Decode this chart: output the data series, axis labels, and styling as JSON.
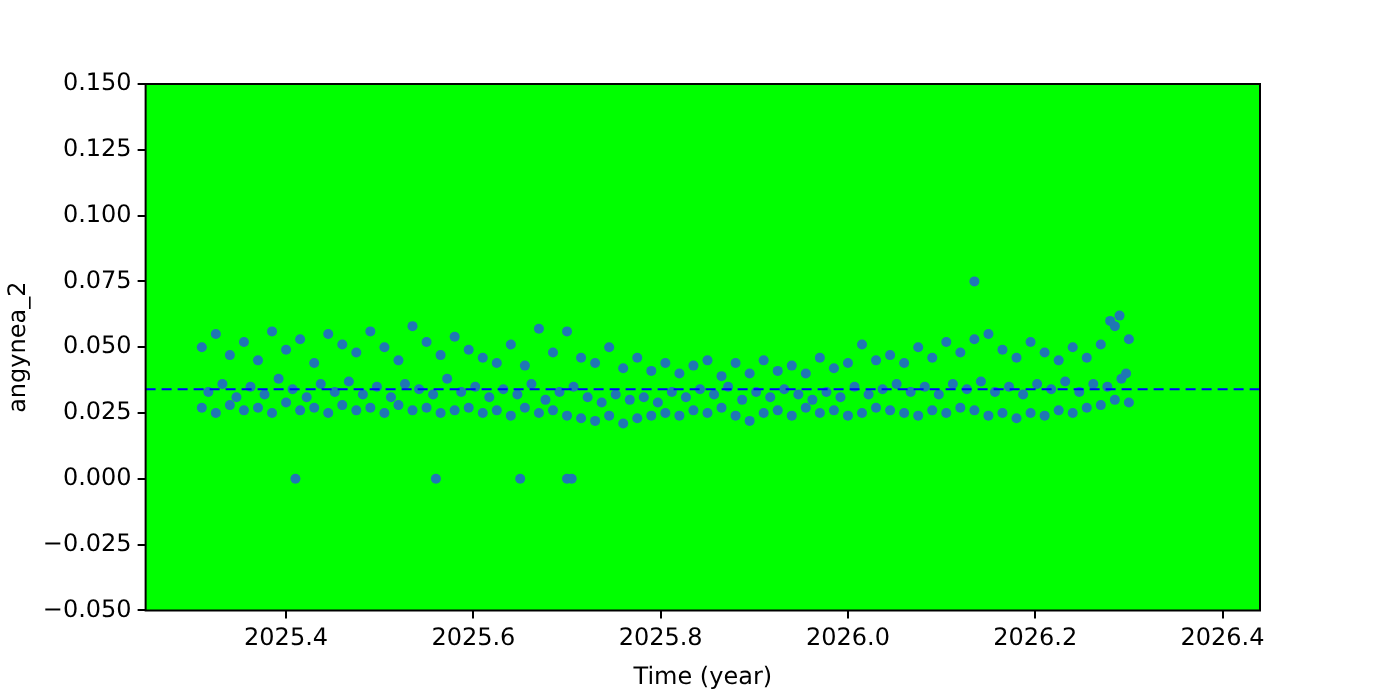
{
  "chart_data": {
    "type": "scatter",
    "xlabel": "Time (year)",
    "ylabel": "angynea_2",
    "x": [
      2025.31,
      2025.325,
      2025.34,
      2025.355,
      2025.37,
      2025.385,
      2025.4,
      2025.415,
      2025.43,
      2025.445,
      2025.46,
      2025.475,
      2025.49,
      2025.505,
      2025.52,
      2025.535,
      2025.55,
      2025.565,
      2025.58,
      2025.595,
      2025.61,
      2025.625,
      2025.64,
      2025.655,
      2025.67,
      2025.685,
      2025.7,
      2025.715,
      2025.73,
      2025.745,
      2025.76,
      2025.775,
      2025.79,
      2025.805,
      2025.82,
      2025.835,
      2025.85,
      2025.865,
      2025.88,
      2025.895,
      2025.91,
      2025.925,
      2025.94,
      2025.955,
      2025.97,
      2025.985,
      2026.0,
      2026.015,
      2026.03,
      2026.045,
      2026.06,
      2026.075,
      2026.09,
      2026.105,
      2026.12,
      2026.135,
      2026.15,
      2026.165,
      2026.18,
      2026.195,
      2026.21,
      2026.225,
      2026.24,
      2026.255,
      2026.27,
      2026.285,
      2026.3,
      2025.31,
      2025.325,
      2025.34,
      2025.355,
      2025.37,
      2025.385,
      2025.4,
      2025.415,
      2025.43,
      2025.445,
      2025.46,
      2025.475,
      2025.49,
      2025.505,
      2025.52,
      2025.535,
      2025.55,
      2025.565,
      2025.58,
      2025.595,
      2025.61,
      2025.625,
      2025.64,
      2025.655,
      2025.67,
      2025.685,
      2025.7,
      2025.715,
      2025.73,
      2025.745,
      2025.76,
      2025.775,
      2025.79,
      2025.805,
      2025.82,
      2025.835,
      2025.85,
      2025.865,
      2025.88,
      2025.895,
      2025.91,
      2025.925,
      2025.94,
      2025.955,
      2025.97,
      2025.985,
      2026.0,
      2026.015,
      2026.03,
      2026.045,
      2026.06,
      2026.075,
      2026.09,
      2026.105,
      2026.12,
      2026.135,
      2026.15,
      2026.165,
      2026.18,
      2026.195,
      2026.21,
      2026.225,
      2026.24,
      2026.255,
      2026.27,
      2026.285,
      2026.3,
      2025.317,
      2025.332,
      2025.347,
      2025.362,
      2025.377,
      2025.392,
      2025.407,
      2025.422,
      2025.437,
      2025.452,
      2025.467,
      2025.482,
      2025.497,
      2025.512,
      2025.527,
      2025.542,
      2025.557,
      2025.572,
      2025.587,
      2025.602,
      2025.617,
      2025.632,
      2025.647,
      2025.662,
      2025.677,
      2025.692,
      2025.707,
      2025.722,
      2025.737,
      2025.752,
      2025.767,
      2025.782,
      2025.797,
      2025.812,
      2025.827,
      2025.842,
      2025.857,
      2025.872,
      2025.887,
      2025.902,
      2025.917,
      2025.932,
      2025.947,
      2025.962,
      2025.977,
      2025.992,
      2026.007,
      2026.022,
      2026.037,
      2026.052,
      2026.067,
      2026.082,
      2026.097,
      2026.112,
      2026.127,
      2026.142,
      2026.157,
      2026.172,
      2026.187,
      2026.202,
      2026.217,
      2026.232,
      2026.247,
      2026.262,
      2026.277,
      2026.292,
      2026.297,
      2025.41,
      2025.56,
      2025.65,
      2025.7,
      2025.705,
      2026.135,
      2026.28,
      2026.29
    ],
    "values": [
      0.05,
      0.055,
      0.047,
      0.052,
      0.045,
      0.056,
      0.049,
      0.053,
      0.044,
      0.055,
      0.051,
      0.048,
      0.056,
      0.05,
      0.045,
      0.058,
      0.052,
      0.047,
      0.054,
      0.049,
      0.046,
      0.044,
      0.051,
      0.043,
      0.057,
      0.048,
      0.056,
      0.046,
      0.044,
      0.05,
      0.042,
      0.046,
      0.041,
      0.044,
      0.04,
      0.043,
      0.045,
      0.039,
      0.044,
      0.04,
      0.045,
      0.041,
      0.043,
      0.04,
      0.046,
      0.042,
      0.044,
      0.051,
      0.045,
      0.047,
      0.044,
      0.05,
      0.046,
      0.052,
      0.048,
      0.053,
      0.055,
      0.049,
      0.046,
      0.052,
      0.048,
      0.045,
      0.05,
      0.046,
      0.051,
      0.058,
      0.053,
      0.027,
      0.025,
      0.028,
      0.026,
      0.027,
      0.025,
      0.029,
      0.026,
      0.027,
      0.025,
      0.028,
      0.026,
      0.027,
      0.025,
      0.028,
      0.026,
      0.027,
      0.025,
      0.026,
      0.027,
      0.025,
      0.026,
      0.024,
      0.027,
      0.025,
      0.026,
      0.024,
      0.023,
      0.022,
      0.024,
      0.021,
      0.023,
      0.024,
      0.025,
      0.024,
      0.026,
      0.025,
      0.027,
      0.024,
      0.022,
      0.025,
      0.026,
      0.024,
      0.027,
      0.025,
      0.026,
      0.024,
      0.025,
      0.027,
      0.026,
      0.025,
      0.024,
      0.026,
      0.025,
      0.027,
      0.026,
      0.024,
      0.025,
      0.023,
      0.025,
      0.024,
      0.026,
      0.025,
      0.027,
      0.028,
      0.03,
      0.029,
      0.033,
      0.036,
      0.031,
      0.035,
      0.032,
      0.038,
      0.034,
      0.031,
      0.036,
      0.033,
      0.037,
      0.032,
      0.035,
      0.031,
      0.036,
      0.034,
      0.032,
      0.038,
      0.033,
      0.035,
      0.031,
      0.034,
      0.032,
      0.036,
      0.03,
      0.033,
      0.035,
      0.031,
      0.029,
      0.032,
      0.03,
      0.031,
      0.029,
      0.033,
      0.031,
      0.034,
      0.032,
      0.035,
      0.03,
      0.033,
      0.031,
      0.034,
      0.032,
      0.03,
      0.033,
      0.031,
      0.035,
      0.032,
      0.034,
      0.036,
      0.033,
      0.035,
      0.032,
      0.036,
      0.034,
      0.037,
      0.033,
      0.035,
      0.032,
      0.036,
      0.034,
      0.037,
      0.033,
      0.036,
      0.035,
      0.038,
      0.04,
      0,
      0,
      0,
      0,
      0,
      0.075,
      0.06,
      0.062
    ],
    "color": "#1f77b4",
    "marker": "circle",
    "xlim": [
      2025.25,
      2026.44
    ],
    "xticks": [
      {
        "value": 2025.4,
        "label": "2025.4"
      },
      {
        "value": 2025.6,
        "label": "2025.6"
      },
      {
        "value": 2025.8,
        "label": "2025.8"
      },
      {
        "value": 2026.0,
        "label": "2026.0"
      },
      {
        "value": 2026.2,
        "label": "2026.2"
      },
      {
        "value": 2026.4,
        "label": "2026.4"
      }
    ],
    "ylim": [
      -0.05,
      0.15
    ],
    "yticks": [
      {
        "value": -0.05,
        "label": "−0.050"
      },
      {
        "value": -0.025,
        "label": "−0.025"
      },
      {
        "value": 0,
        "label": "0.000"
      },
      {
        "value": 0.025,
        "label": "0.025"
      },
      {
        "value": 0.05,
        "label": "0.050"
      },
      {
        "value": 0.075,
        "label": "0.075"
      },
      {
        "value": 0.1,
        "label": "0.100"
      },
      {
        "value": 0.125,
        "label": "0.125"
      },
      {
        "value": 0.15,
        "label": "0.150"
      }
    ],
    "ref_lines": [
      {
        "axis": "y",
        "value": 0.034,
        "color": "#0000ff",
        "line_style": "dashed"
      }
    ],
    "legend": false
  }
}
